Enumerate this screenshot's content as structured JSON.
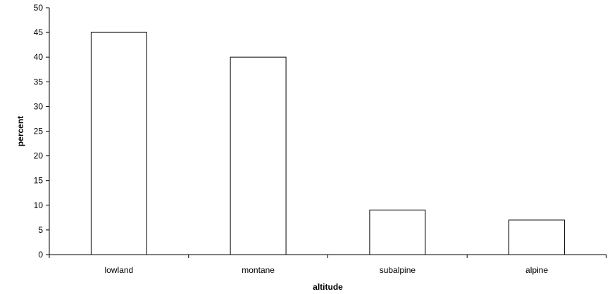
{
  "chart_data": {
    "type": "bar",
    "title": "",
    "xlabel": "altitude",
    "ylabel": "percent",
    "categories": [
      "lowland",
      "montane",
      "subalpine",
      "alpine"
    ],
    "values": [
      45,
      40,
      9,
      7
    ],
    "ylim": [
      0,
      50
    ],
    "yticks": [
      0,
      5,
      10,
      15,
      20,
      25,
      30,
      35,
      40,
      45,
      50
    ],
    "grid": false,
    "legend": "none",
    "bar_fill": "#ffffff",
    "bar_stroke": "#000000",
    "axis_color": "#000000"
  }
}
